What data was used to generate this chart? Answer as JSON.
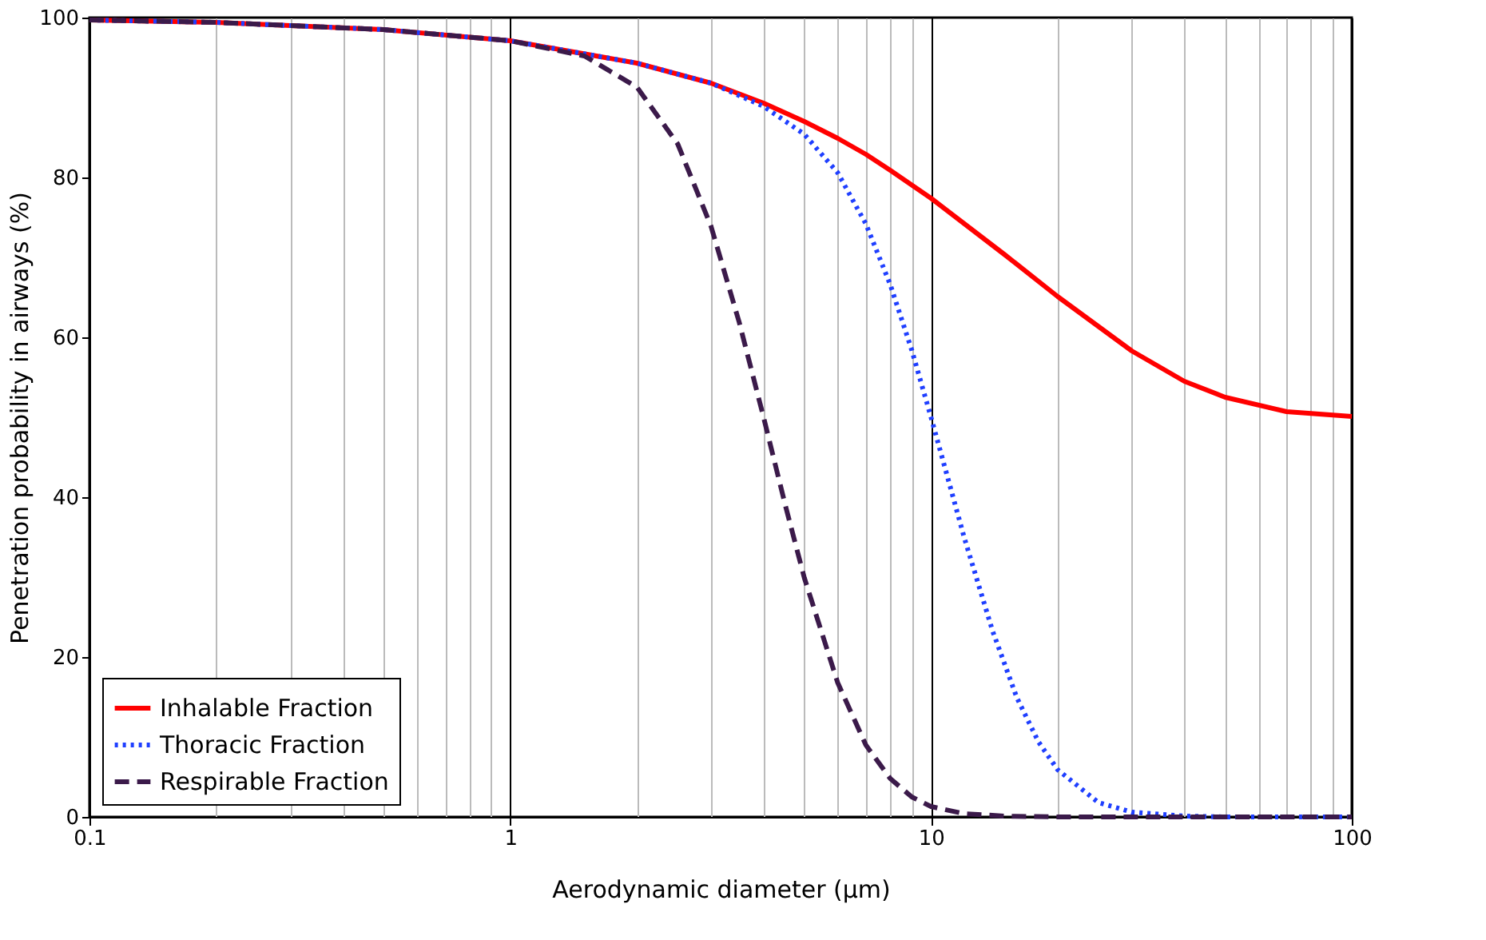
{
  "chart_data": {
    "type": "line",
    "xlabel": "Aerodynamic diameter (μm)",
    "ylabel": "Penetration probability in airways (%)",
    "log": "x",
    "xlim": [
      0.1,
      100
    ],
    "xticks": [
      0.1,
      1,
      10,
      100
    ],
    "ylim": [
      0,
      100
    ],
    "yticks": [
      0,
      20,
      40,
      60,
      80,
      100
    ],
    "grid": "x",
    "legend": "bottom left",
    "marker": "none",
    "series": [
      {
        "name": "Inhalable Fraction",
        "color": "#ff0000",
        "line_style": "solid",
        "x": [
          0.1,
          0.2,
          0.5,
          1,
          2,
          3,
          4,
          5,
          6,
          7,
          8,
          10,
          15,
          20,
          30,
          40,
          50,
          70,
          100
        ],
        "values": [
          99.7,
          99.4,
          98.5,
          97.1,
          94.3,
          91.8,
          89.3,
          87.0,
          84.9,
          82.9,
          80.9,
          77.4,
          70.3,
          65.1,
          58.3,
          54.5,
          52.5,
          50.7,
          50.1
        ]
      },
      {
        "name": "Thoracic Fraction",
        "color": "#1f3fff",
        "line_style": "dotted",
        "x": [
          0.1,
          0.2,
          0.5,
          1,
          2,
          3,
          4,
          5,
          6,
          7,
          8,
          9,
          10,
          12,
          14,
          16,
          18,
          20,
          25,
          30,
          40,
          50,
          100
        ],
        "values": [
          99.7,
          99.4,
          98.5,
          97.1,
          94.3,
          91.8,
          88.9,
          85.4,
          80.6,
          74.2,
          66.6,
          58.4,
          50.0,
          34.9,
          23.3,
          14.9,
          9.4,
          5.9,
          1.8,
          0.6,
          0.1,
          0,
          0
        ]
      },
      {
        "name": "Respirable Fraction",
        "color": "#3b1a4a",
        "line_style": "dashed",
        "x": [
          0.1,
          0.2,
          0.5,
          1,
          1.5,
          2,
          2.5,
          3,
          3.5,
          4,
          4.5,
          5,
          6,
          7,
          8,
          9,
          10,
          12,
          15,
          20,
          100
        ],
        "values": [
          99.7,
          99.4,
          98.5,
          97.1,
          95.2,
          91.3,
          84.2,
          73.9,
          61.9,
          50.0,
          39.1,
          29.9,
          16.8,
          9.0,
          4.8,
          2.5,
          1.3,
          0.4,
          0.1,
          0,
          0
        ]
      }
    ]
  }
}
